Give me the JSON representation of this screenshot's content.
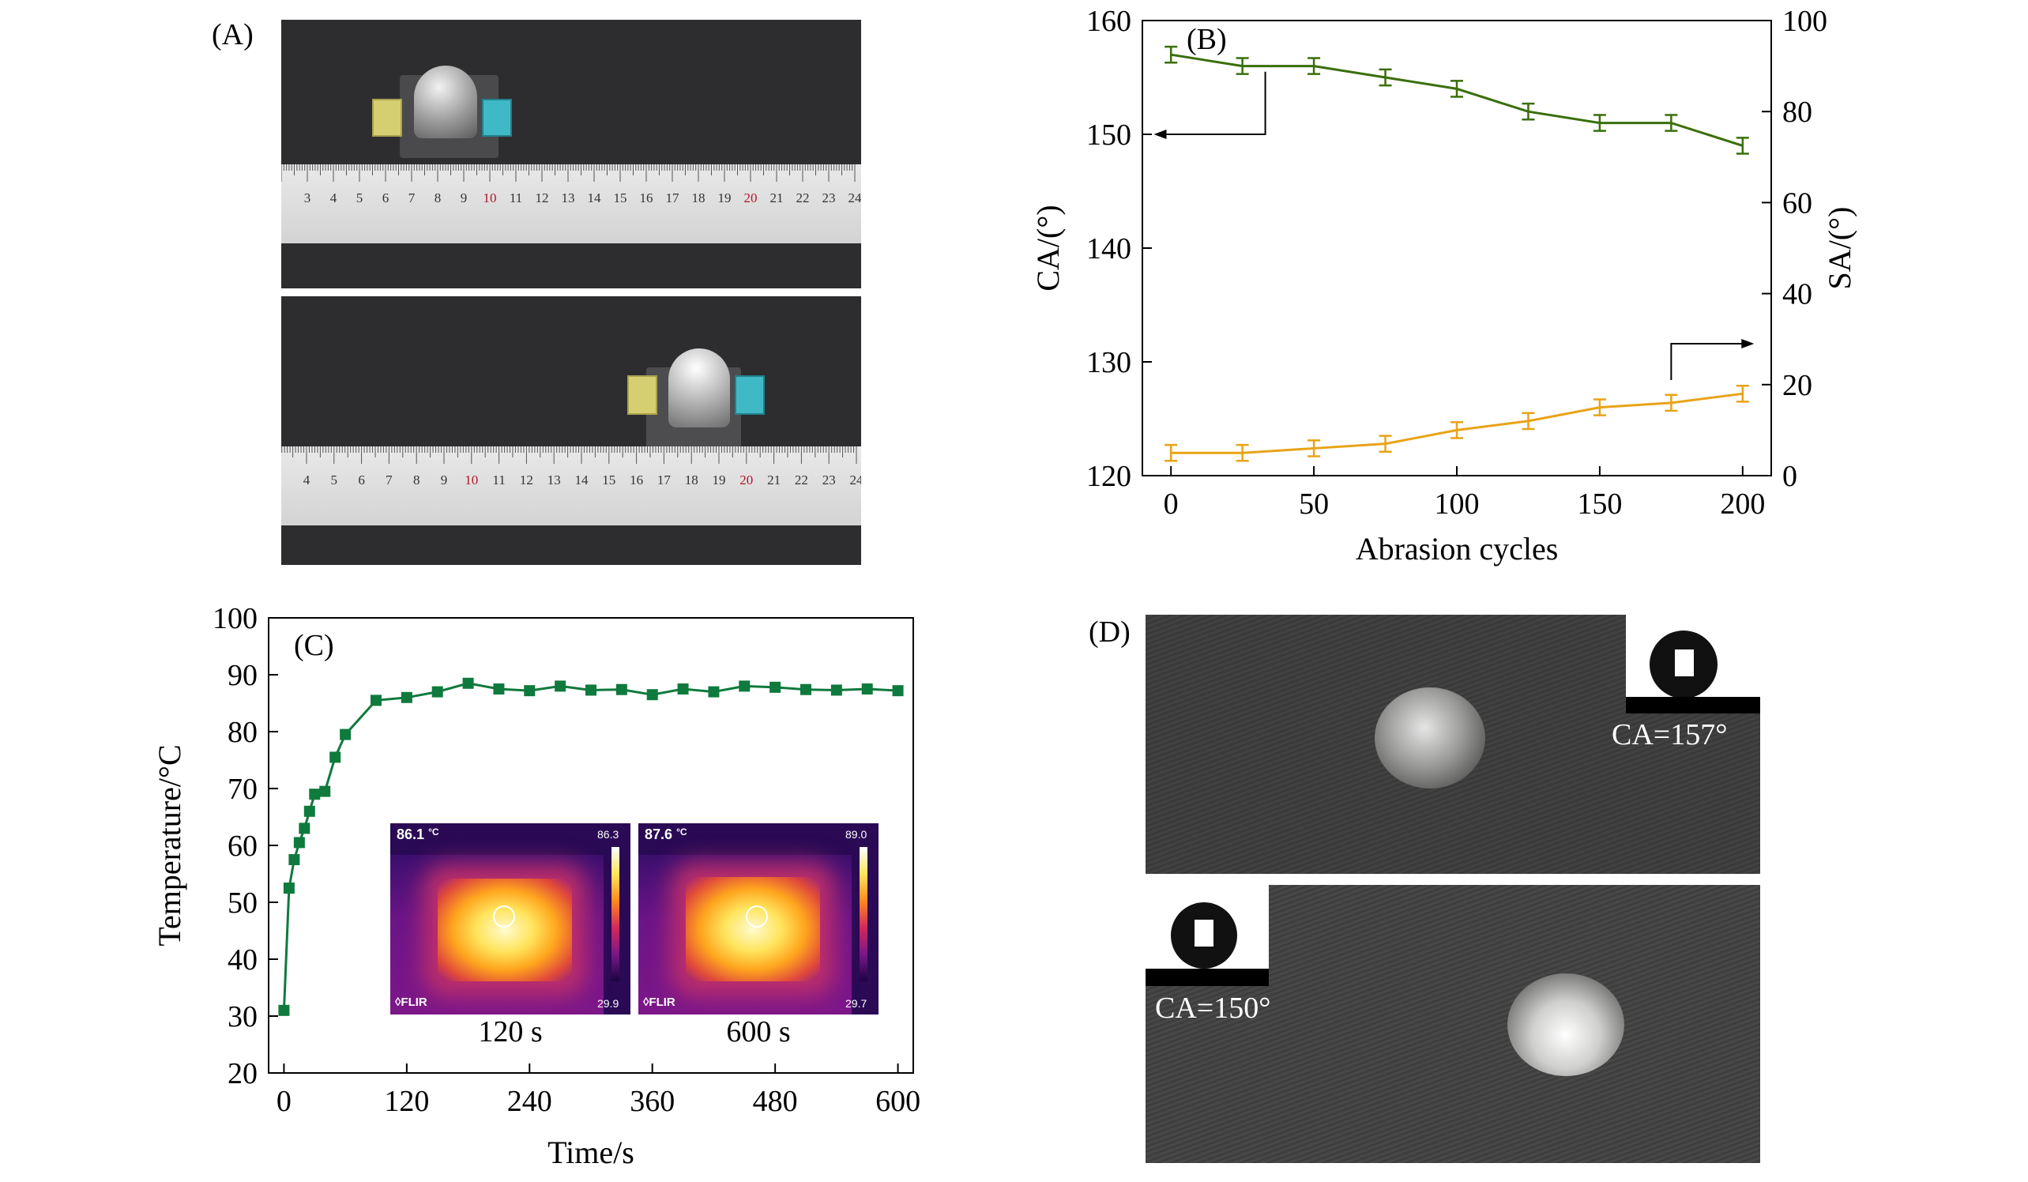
{
  "panels": {
    "a": {
      "label": "(A)"
    },
    "b": {
      "label": "(B)"
    },
    "c": {
      "label": "(C)"
    },
    "d": {
      "label": "(D)"
    }
  },
  "photos_a": {
    "top_ruler_ticks": [
      "3",
      "4",
      "5",
      "6",
      "7",
      "8",
      "9",
      "10",
      "11",
      "12",
      "13",
      "14",
      "15",
      "16",
      "17",
      "18",
      "19",
      "20",
      "21",
      "22",
      "23",
      "24"
    ],
    "bottom_ruler_ticks": [
      "4",
      "5",
      "6",
      "7",
      "8",
      "9",
      "10",
      "11",
      "12",
      "13",
      "14",
      "15",
      "16",
      "17",
      "18",
      "19",
      "20",
      "21",
      "22",
      "23",
      "24"
    ]
  },
  "thermal_images": [
    {
      "readout": "86.1",
      "unit": "°C",
      "max": "86.3",
      "min": "29.9",
      "brand": "FLIR",
      "caption": "120 s"
    },
    {
      "readout": "87.6",
      "unit": "°C",
      "max": "89.0",
      "min": "29.7",
      "brand": "FLIR",
      "caption": "600 s"
    }
  ],
  "photos_d": {
    "top_ca": "CA=157°",
    "bottom_ca": "CA=150°"
  },
  "colors": {
    "ca_line": "#3a6f0a",
    "sa_line": "#e8a317",
    "temp_line": "#0f7a3d"
  },
  "chart_data": [
    {
      "type": "line",
      "panel": "(B)",
      "xlabel": "Abrasion cycles",
      "ylabel_left": "CA/(°)",
      "ylabel_right": "SA/(°)",
      "xlim": [
        -10,
        210
      ],
      "ylim_left": [
        120,
        160
      ],
      "ylim_right": [
        0,
        100
      ],
      "x_ticks": [
        0,
        50,
        100,
        150,
        200
      ],
      "y_left_ticks": [
        120,
        130,
        140,
        150,
        160
      ],
      "y_right_ticks": [
        0,
        20,
        40,
        60,
        80,
        100
      ],
      "x": [
        0,
        25,
        50,
        75,
        100,
        125,
        150,
        175,
        200
      ],
      "series": [
        {
          "axis": "left",
          "values": [
            157,
            156,
            156,
            155,
            154,
            152,
            151,
            151,
            149
          ],
          "error": [
            0.7,
            0.7,
            0.7,
            0.7,
            0.7,
            0.7,
            0.7,
            0.7,
            0.7
          ]
        },
        {
          "axis": "right",
          "values": [
            5,
            5,
            6,
            7,
            10,
            12,
            15,
            16,
            18
          ],
          "error": [
            0.7,
            0.7,
            0.7,
            0.7,
            0.7,
            0.7,
            0.7,
            0.7,
            0.7
          ]
        }
      ],
      "grid": false
    },
    {
      "type": "line",
      "panel": "(C)",
      "xlabel": "Time/s",
      "ylabel": "Temperature/°C",
      "xlim": [
        -15,
        615
      ],
      "ylim": [
        20,
        100
      ],
      "x_ticks": [
        0,
        120,
        240,
        360,
        480,
        600
      ],
      "y_ticks": [
        20,
        30,
        40,
        50,
        60,
        70,
        80,
        90,
        100
      ],
      "x": [
        0,
        5,
        10,
        15,
        20,
        25,
        30,
        40,
        50,
        60,
        90,
        120,
        150,
        180,
        210,
        240,
        270,
        300,
        330,
        360,
        390,
        420,
        450,
        480,
        510,
        540,
        570,
        600
      ],
      "series": [
        {
          "values": [
            31,
            52.5,
            57.5,
            60.5,
            63,
            66,
            69,
            69.5,
            75.5,
            79.5,
            85.5,
            86,
            87,
            88.5,
            87.5,
            87.2,
            88,
            87.3,
            87.4,
            86.5,
            87.5,
            87,
            88,
            87.8,
            87.4,
            87.3,
            87.5,
            87.2
          ]
        }
      ],
      "grid": false
    }
  ]
}
